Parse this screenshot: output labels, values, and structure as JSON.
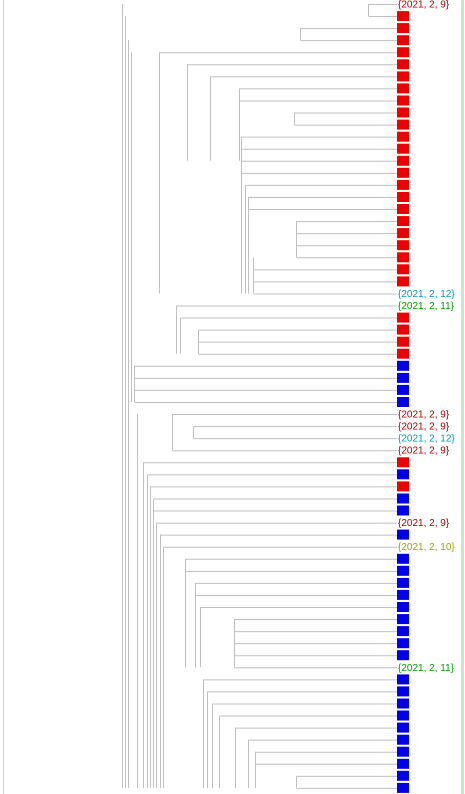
{
  "colors": {
    "branch": "#c0c0c0",
    "red_square": "#ee0000",
    "blue_square": "#0000ee",
    "label_dark_red": "#b00000",
    "label_teal": "#0099bb",
    "label_green": "#00a000",
    "label_olive": "#a0a000",
    "right_border": "#c8e6c8"
  },
  "leaves": [
    {
      "kind": "label",
      "text": "{2021, 2, 9}",
      "color": "label_dark_red"
    },
    {
      "kind": "square",
      "color": "red_square"
    },
    {
      "kind": "square",
      "color": "red_square"
    },
    {
      "kind": "square",
      "color": "red_square"
    },
    {
      "kind": "square",
      "color": "red_square"
    },
    {
      "kind": "square",
      "color": "red_square"
    },
    {
      "kind": "square",
      "color": "red_square"
    },
    {
      "kind": "square",
      "color": "red_square"
    },
    {
      "kind": "square",
      "color": "red_square"
    },
    {
      "kind": "square",
      "color": "red_square"
    },
    {
      "kind": "square",
      "color": "red_square"
    },
    {
      "kind": "square",
      "color": "red_square"
    },
    {
      "kind": "square",
      "color": "red_square"
    },
    {
      "kind": "square",
      "color": "red_square"
    },
    {
      "kind": "square",
      "color": "red_square"
    },
    {
      "kind": "square",
      "color": "red_square"
    },
    {
      "kind": "square",
      "color": "red_square"
    },
    {
      "kind": "square",
      "color": "red_square"
    },
    {
      "kind": "square",
      "color": "red_square"
    },
    {
      "kind": "square",
      "color": "red_square"
    },
    {
      "kind": "square",
      "color": "red_square"
    },
    {
      "kind": "square",
      "color": "red_square"
    },
    {
      "kind": "square",
      "color": "red_square"
    },
    {
      "kind": "square",
      "color": "red_square"
    },
    {
      "kind": "label",
      "text": "{2021, 2, 12}",
      "color": "label_teal"
    },
    {
      "kind": "label",
      "text": "{2021, 2, 11}",
      "color": "label_green"
    },
    {
      "kind": "square",
      "color": "red_square"
    },
    {
      "kind": "square",
      "color": "red_square"
    },
    {
      "kind": "square",
      "color": "red_square"
    },
    {
      "kind": "square",
      "color": "red_square"
    },
    {
      "kind": "square",
      "color": "blue_square"
    },
    {
      "kind": "square",
      "color": "blue_square"
    },
    {
      "kind": "square",
      "color": "blue_square"
    },
    {
      "kind": "square",
      "color": "blue_square"
    },
    {
      "kind": "label",
      "text": "{2021, 2, 9}",
      "color": "label_dark_red"
    },
    {
      "kind": "label",
      "text": "{2021, 2, 9}",
      "color": "label_dark_red"
    },
    {
      "kind": "label",
      "text": "{2021, 2, 12}",
      "color": "label_teal"
    },
    {
      "kind": "label",
      "text": "{2021, 2, 9}",
      "color": "label_dark_red"
    },
    {
      "kind": "square",
      "color": "red_square"
    },
    {
      "kind": "square",
      "color": "blue_square"
    },
    {
      "kind": "square",
      "color": "red_square"
    },
    {
      "kind": "square",
      "color": "blue_square"
    },
    {
      "kind": "square",
      "color": "blue_square"
    },
    {
      "kind": "label",
      "text": "{2021, 2, 9}",
      "color": "label_dark_red"
    },
    {
      "kind": "square",
      "color": "blue_square"
    },
    {
      "kind": "label",
      "text": "{2021, 2, 10}",
      "color": "label_olive"
    },
    {
      "kind": "square",
      "color": "blue_square"
    },
    {
      "kind": "square",
      "color": "blue_square"
    },
    {
      "kind": "square",
      "color": "blue_square"
    },
    {
      "kind": "square",
      "color": "blue_square"
    },
    {
      "kind": "square",
      "color": "blue_square"
    },
    {
      "kind": "square",
      "color": "blue_square"
    },
    {
      "kind": "square",
      "color": "blue_square"
    },
    {
      "kind": "square",
      "color": "blue_square"
    },
    {
      "kind": "square",
      "color": "blue_square"
    },
    {
      "kind": "label",
      "text": "{2021, 2, 11}",
      "color": "label_green"
    },
    {
      "kind": "square",
      "color": "blue_square"
    },
    {
      "kind": "square",
      "color": "blue_square"
    },
    {
      "kind": "square",
      "color": "blue_square"
    },
    {
      "kind": "square",
      "color": "blue_square"
    },
    {
      "kind": "square",
      "color": "blue_square"
    },
    {
      "kind": "square",
      "color": "blue_square"
    },
    {
      "kind": "square",
      "color": "blue_square"
    },
    {
      "kind": "square",
      "color": "blue_square"
    },
    {
      "kind": "square",
      "color": "blue_square"
    },
    {
      "kind": "square",
      "color": "blue_square"
    }
  ]
}
